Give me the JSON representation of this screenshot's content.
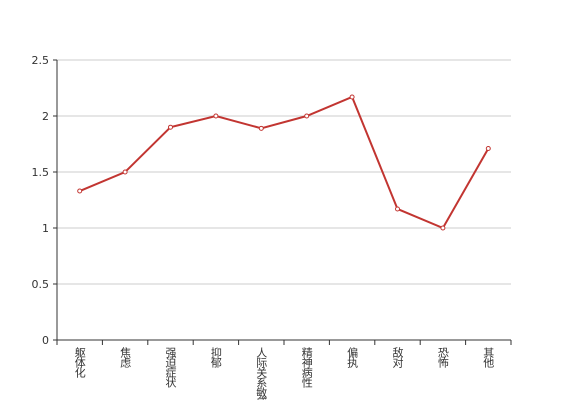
{
  "chart_data": {
    "type": "line",
    "categories": [
      "躯体化",
      "焦虑",
      "强迫症状",
      "抑郁",
      "人际关系敏感",
      "精神病性",
      "偏执",
      "敌对",
      "恐怖",
      "其他"
    ],
    "series": [
      {
        "color": "#c23531",
        "values": [
          1.33,
          1.5,
          1.9,
          2.0,
          1.89,
          2.0,
          2.17,
          1.17,
          1.0,
          1.71
        ]
      }
    ],
    "ylim": [
      0,
      2.5
    ],
    "yticks": [
      0,
      0.5,
      1,
      1.5,
      2,
      2.5
    ],
    "grid": true
  }
}
